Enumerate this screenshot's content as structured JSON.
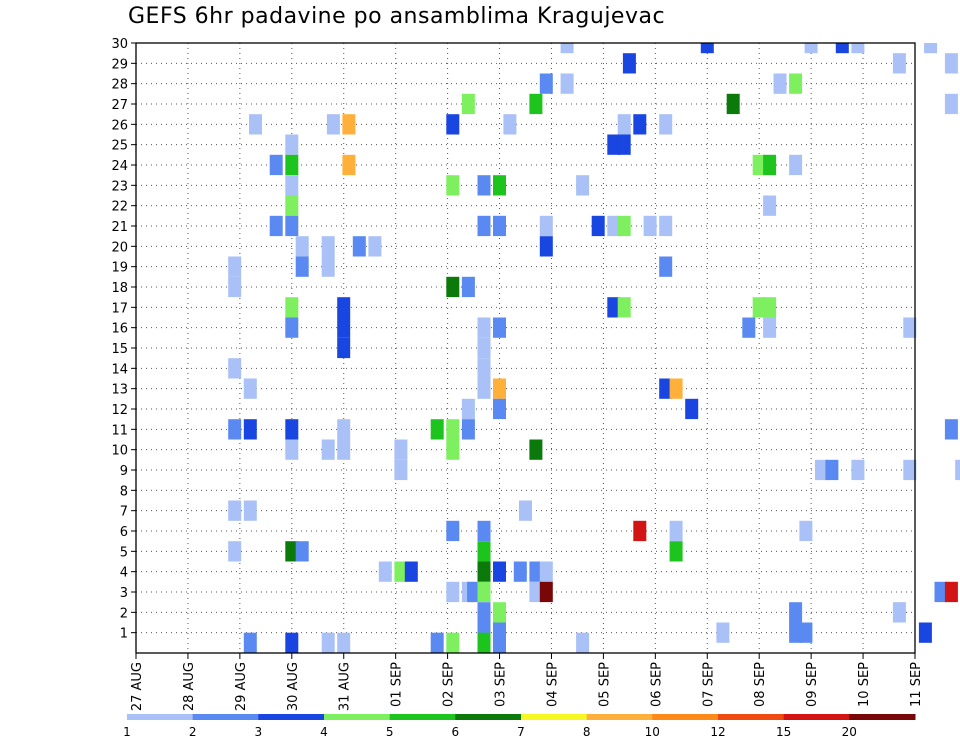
{
  "chart_data": {
    "type": "heatmap",
    "title": "GEFS 6hr padavine po ansamblima Kragujevac",
    "y_ticks": [
      "1",
      "2",
      "3",
      "4",
      "5",
      "6",
      "7",
      "8",
      "9",
      "10",
      "11",
      "12",
      "13",
      "14",
      "15",
      "16",
      "17",
      "18",
      "19",
      "20",
      "21",
      "22",
      "23",
      "24",
      "25",
      "26",
      "27",
      "28",
      "29",
      "30"
    ],
    "x_ticks": [
      "27 AUG",
      "28 AUG",
      "29 AUG",
      "30 AUG",
      "31 AUG",
      "01 SEP",
      "02 SEP",
      "03 SEP",
      "04 SEP",
      "05 SEP",
      "06 SEP",
      "07 SEP",
      "08 SEP",
      "09 SEP",
      "10 SEP",
      "11 SEP"
    ],
    "grid": true,
    "legend": {
      "placement": "bottom",
      "labels": [
        "1",
        "2",
        "3",
        "4",
        "5",
        "6",
        "7",
        "8",
        "10",
        "12",
        "15",
        "20"
      ],
      "colors": [
        "#a9c1f7",
        "#5a8af1",
        "#1945e0",
        "#7ef060",
        "#1ec41e",
        "#0b7a0b",
        "#f7f724",
        "#ffb03a",
        "#ff8a1a",
        "#f04a10",
        "#d21414",
        "#7a0707"
      ]
    },
    "cells": [
      {
        "x": 8.3,
        "y": 30,
        "v": 1.5
      },
      {
        "x": 11.0,
        "y": 30,
        "v": 3.5
      },
      {
        "x": 13.0,
        "y": 30,
        "v": 1.5
      },
      {
        "x": 13.6,
        "y": 30,
        "v": 3.5
      },
      {
        "x": 13.9,
        "y": 30,
        "v": 1.5
      },
      {
        "x": 15.3,
        "y": 30,
        "v": 1.5
      },
      {
        "x": 9.5,
        "y": 29,
        "v": 3.5
      },
      {
        "x": 14.7,
        "y": 29,
        "v": 1.5
      },
      {
        "x": 15.7,
        "y": 29,
        "v": 1.5
      },
      {
        "x": 7.9,
        "y": 28,
        "v": 2.5
      },
      {
        "x": 8.3,
        "y": 28,
        "v": 1.5
      },
      {
        "x": 12.4,
        "y": 28,
        "v": 1.5
      },
      {
        "x": 12.7,
        "y": 28,
        "v": 4.5
      },
      {
        "x": 6.4,
        "y": 27,
        "v": 4.5
      },
      {
        "x": 7.7,
        "y": 27,
        "v": 5.5
      },
      {
        "x": 11.5,
        "y": 27,
        "v": 6.5
      },
      {
        "x": 15.7,
        "y": 27,
        "v": 1.5
      },
      {
        "x": 2.3,
        "y": 26,
        "v": 1.5
      },
      {
        "x": 3.8,
        "y": 26,
        "v": 1.5
      },
      {
        "x": 4.1,
        "y": 26,
        "v": 8.5
      },
      {
        "x": 6.1,
        "y": 26,
        "v": 3.5
      },
      {
        "x": 7.2,
        "y": 26,
        "v": 1.5
      },
      {
        "x": 9.4,
        "y": 26,
        "v": 1.5
      },
      {
        "x": 9.7,
        "y": 26,
        "v": 3.5
      },
      {
        "x": 10.2,
        "y": 26,
        "v": 1.5
      },
      {
        "x": 3.0,
        "y": 25,
        "v": 1.5
      },
      {
        "x": 9.2,
        "y": 25,
        "v": 3.5
      },
      {
        "x": 9.4,
        "y": 25,
        "v": 3.5
      },
      {
        "x": 2.7,
        "y": 24,
        "v": 2.5
      },
      {
        "x": 3.0,
        "y": 24,
        "v": 5.5
      },
      {
        "x": 4.1,
        "y": 24,
        "v": 8.5
      },
      {
        "x": 12.0,
        "y": 24,
        "v": 4.5
      },
      {
        "x": 12.2,
        "y": 24,
        "v": 5.5
      },
      {
        "x": 12.7,
        "y": 24,
        "v": 1.5
      },
      {
        "x": 3.0,
        "y": 23,
        "v": 1.5
      },
      {
        "x": 6.1,
        "y": 23,
        "v": 4.5
      },
      {
        "x": 6.7,
        "y": 23,
        "v": 2.5
      },
      {
        "x": 7.0,
        "y": 23,
        "v": 5.5
      },
      {
        "x": 8.6,
        "y": 23,
        "v": 1.5
      },
      {
        "x": 3.0,
        "y": 22,
        "v": 4.5
      },
      {
        "x": 12.2,
        "y": 22,
        "v": 1.5
      },
      {
        "x": 2.7,
        "y": 21,
        "v": 2.5
      },
      {
        "x": 3.0,
        "y": 21,
        "v": 2.5
      },
      {
        "x": 6.7,
        "y": 21,
        "v": 2.5
      },
      {
        "x": 7.0,
        "y": 21,
        "v": 2.5
      },
      {
        "x": 7.9,
        "y": 21,
        "v": 1.5
      },
      {
        "x": 8.9,
        "y": 21,
        "v": 3.5
      },
      {
        "x": 9.2,
        "y": 21,
        "v": 1.5
      },
      {
        "x": 9.4,
        "y": 21,
        "v": 4.5
      },
      {
        "x": 9.9,
        "y": 21,
        "v": 1.5
      },
      {
        "x": 10.2,
        "y": 21,
        "v": 1.5
      },
      {
        "x": 3.2,
        "y": 20,
        "v": 1.5
      },
      {
        "x": 3.7,
        "y": 20,
        "v": 1.5
      },
      {
        "x": 4.3,
        "y": 20,
        "v": 2.5
      },
      {
        "x": 4.6,
        "y": 20,
        "v": 1.5
      },
      {
        "x": 7.9,
        "y": 20,
        "v": 3.5
      },
      {
        "x": 1.9,
        "y": 19,
        "v": 1.5
      },
      {
        "x": 3.2,
        "y": 19,
        "v": 2.5
      },
      {
        "x": 3.7,
        "y": 19,
        "v": 1.5
      },
      {
        "x": 10.2,
        "y": 19,
        "v": 2.5
      },
      {
        "x": 1.9,
        "y": 18,
        "v": 1.5
      },
      {
        "x": 6.1,
        "y": 18,
        "v": 6.5
      },
      {
        "x": 6.4,
        "y": 18,
        "v": 2.5
      },
      {
        "x": 3.0,
        "y": 17,
        "v": 4.5
      },
      {
        "x": 4.0,
        "y": 17,
        "v": 3.5
      },
      {
        "x": 9.2,
        "y": 17,
        "v": 3.5
      },
      {
        "x": 9.4,
        "y": 17,
        "v": 4.5
      },
      {
        "x": 12.0,
        "y": 17,
        "v": 4.5
      },
      {
        "x": 12.2,
        "y": 17,
        "v": 4.5
      },
      {
        "x": 3.0,
        "y": 16,
        "v": 2.5
      },
      {
        "x": 4.0,
        "y": 16,
        "v": 3.5
      },
      {
        "x": 6.7,
        "y": 16,
        "v": 1.5
      },
      {
        "x": 7.0,
        "y": 16,
        "v": 2.5
      },
      {
        "x": 11.8,
        "y": 16,
        "v": 2.5
      },
      {
        "x": 12.2,
        "y": 16,
        "v": 1.5
      },
      {
        "x": 14.9,
        "y": 16,
        "v": 1.5
      },
      {
        "x": 4.0,
        "y": 15,
        "v": 3.5
      },
      {
        "x": 6.7,
        "y": 15,
        "v": 1.5
      },
      {
        "x": 1.9,
        "y": 14,
        "v": 1.5
      },
      {
        "x": 6.7,
        "y": 14,
        "v": 1.5
      },
      {
        "x": 2.2,
        "y": 13,
        "v": 1.5
      },
      {
        "x": 6.7,
        "y": 13,
        "v": 1.5
      },
      {
        "x": 7.0,
        "y": 13,
        "v": 8.5
      },
      {
        "x": 10.2,
        "y": 13,
        "v": 3.5
      },
      {
        "x": 10.4,
        "y": 13,
        "v": 8.5
      },
      {
        "x": 6.4,
        "y": 12,
        "v": 1.5
      },
      {
        "x": 7.0,
        "y": 12,
        "v": 2.5
      },
      {
        "x": 10.7,
        "y": 12,
        "v": 3.5
      },
      {
        "x": 1.9,
        "y": 11,
        "v": 2.5
      },
      {
        "x": 2.2,
        "y": 11,
        "v": 3.5
      },
      {
        "x": 3.0,
        "y": 11,
        "v": 3.5
      },
      {
        "x": 4.0,
        "y": 11,
        "v": 1.5
      },
      {
        "x": 5.8,
        "y": 11,
        "v": 5.5
      },
      {
        "x": 6.1,
        "y": 11,
        "v": 4.5
      },
      {
        "x": 6.4,
        "y": 11,
        "v": 2.5
      },
      {
        "x": 15.7,
        "y": 11,
        "v": 2.5
      },
      {
        "x": 3.0,
        "y": 10,
        "v": 1.5
      },
      {
        "x": 3.7,
        "y": 10,
        "v": 1.5
      },
      {
        "x": 4.0,
        "y": 10,
        "v": 1.5
      },
      {
        "x": 5.1,
        "y": 10,
        "v": 1.5
      },
      {
        "x": 6.1,
        "y": 10,
        "v": 4.5
      },
      {
        "x": 7.7,
        "y": 10,
        "v": 6.5
      },
      {
        "x": 5.1,
        "y": 9,
        "v": 1.5
      },
      {
        "x": 13.2,
        "y": 9,
        "v": 1.5
      },
      {
        "x": 13.4,
        "y": 9,
        "v": 2.5
      },
      {
        "x": 13.9,
        "y": 9,
        "v": 1.5
      },
      {
        "x": 14.9,
        "y": 9,
        "v": 1.5
      },
      {
        "x": 15.9,
        "y": 9,
        "v": 1.5
      },
      {
        "x": 1.9,
        "y": 7,
        "v": 1.5
      },
      {
        "x": 2.2,
        "y": 7,
        "v": 1.5
      },
      {
        "x": 7.5,
        "y": 7,
        "v": 1.5
      },
      {
        "x": 6.1,
        "y": 6,
        "v": 2.5
      },
      {
        "x": 6.7,
        "y": 6,
        "v": 2.5
      },
      {
        "x": 9.7,
        "y": 6,
        "v": 15.5
      },
      {
        "x": 10.4,
        "y": 6,
        "v": 1.5
      },
      {
        "x": 12.9,
        "y": 6,
        "v": 1.5
      },
      {
        "x": 1.9,
        "y": 5,
        "v": 1.5
      },
      {
        "x": 3.0,
        "y": 5,
        "v": 6.5
      },
      {
        "x": 3.2,
        "y": 5,
        "v": 2.5
      },
      {
        "x": 6.7,
        "y": 5,
        "v": 5.5
      },
      {
        "x": 10.4,
        "y": 5,
        "v": 5.5
      },
      {
        "x": 4.8,
        "y": 4,
        "v": 1.5
      },
      {
        "x": 5.1,
        "y": 4,
        "v": 4.5
      },
      {
        "x": 5.3,
        "y": 4,
        "v": 3.5
      },
      {
        "x": 6.7,
        "y": 4,
        "v": 6.5
      },
      {
        "x": 7.0,
        "y": 4,
        "v": 3.5
      },
      {
        "x": 7.4,
        "y": 4,
        "v": 2.5
      },
      {
        "x": 7.7,
        "y": 4,
        "v": 2.5
      },
      {
        "x": 7.9,
        "y": 4,
        "v": 1.5
      },
      {
        "x": 6.1,
        "y": 3,
        "v": 1.5
      },
      {
        "x": 6.4,
        "y": 3,
        "v": 1.5
      },
      {
        "x": 6.5,
        "y": 3,
        "v": 2.5
      },
      {
        "x": 6.7,
        "y": 3,
        "v": 4.5
      },
      {
        "x": 7.7,
        "y": 3,
        "v": 1.5
      },
      {
        "x": 7.9,
        "y": 3,
        "v": 22.0
      },
      {
        "x": 15.5,
        "y": 3,
        "v": 2.5
      },
      {
        "x": 15.7,
        "y": 3,
        "v": 15.5
      },
      {
        "x": 6.7,
        "y": 2,
        "v": 2.5
      },
      {
        "x": 7.0,
        "y": 2,
        "v": 4.5
      },
      {
        "x": 12.7,
        "y": 2,
        "v": 2.5
      },
      {
        "x": 14.7,
        "y": 2,
        "v": 1.5
      },
      {
        "x": 6.7,
        "y": 1,
        "v": 2.5
      },
      {
        "x": 7.0,
        "y": 1,
        "v": 2.5
      },
      {
        "x": 11.3,
        "y": 1,
        "v": 1.5
      },
      {
        "x": 12.7,
        "y": 1,
        "v": 2.5
      },
      {
        "x": 12.9,
        "y": 1,
        "v": 2.5
      },
      {
        "x": 15.2,
        "y": 1,
        "v": 3.5
      },
      {
        "x": 2.2,
        "y": 0.5,
        "v": 2.5
      },
      {
        "x": 3.0,
        "y": 0.5,
        "v": 3.5
      },
      {
        "x": 3.7,
        "y": 0.5,
        "v": 1.5
      },
      {
        "x": 4.0,
        "y": 0.5,
        "v": 1.5
      },
      {
        "x": 5.8,
        "y": 0.5,
        "v": 2.5
      },
      {
        "x": 6.1,
        "y": 0.5,
        "v": 4.5
      },
      {
        "x": 6.7,
        "y": 0.5,
        "v": 5.5
      },
      {
        "x": 7.0,
        "y": 0.5,
        "v": 2.5
      },
      {
        "x": 8.6,
        "y": 0.5,
        "v": 1.5
      }
    ]
  }
}
